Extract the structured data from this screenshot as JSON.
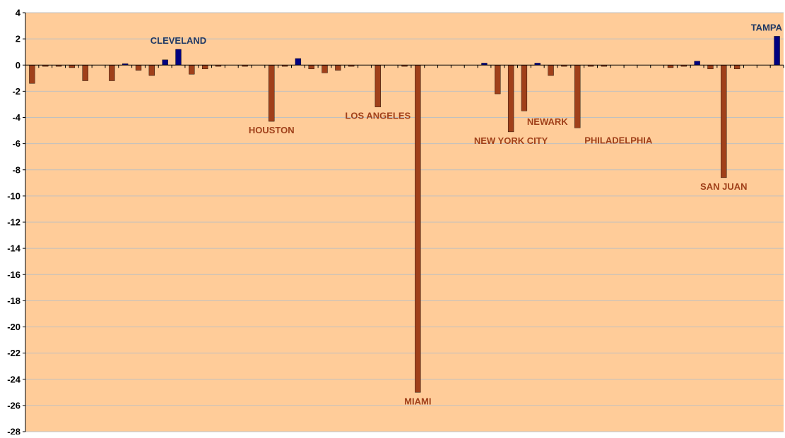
{
  "chart_data": {
    "type": "bar",
    "title": "",
    "xlabel": "",
    "ylabel": "",
    "ylim": [
      -28,
      4
    ],
    "yticks": [
      4,
      2,
      0,
      -2,
      -4,
      -6,
      -8,
      -10,
      -12,
      -14,
      -16,
      -18,
      -20,
      -22,
      -24,
      -26,
      -28
    ],
    "grid": true,
    "legend": "none",
    "values": [
      -1.4,
      -0.1,
      -0.1,
      -0.2,
      -1.2,
      0,
      -1.2,
      0.1,
      -0.4,
      -0.8,
      0.4,
      1.2,
      -0.7,
      -0.3,
      -0.1,
      0,
      -0.1,
      0,
      -4.3,
      -0.1,
      0.5,
      -0.3,
      -0.6,
      -0.4,
      -0.1,
      0,
      -3.2,
      0,
      -0.1,
      -25,
      0,
      0,
      0,
      0,
      0.15,
      -2.2,
      -5.1,
      -3.5,
      0.15,
      -0.8,
      -0.1,
      -4.8,
      -0.1,
      -0.1,
      0,
      0,
      0,
      0,
      -0.2,
      -0.1,
      0.3,
      -0.3,
      -8.6,
      -0.3,
      0,
      0,
      2.2
    ],
    "annotations": [
      {
        "label": "CLEVELAND",
        "index": 11
      },
      {
        "label": "HOUSTON",
        "index": 18
      },
      {
        "label": "LOS ANGELES",
        "index": 26
      },
      {
        "label": "MIAMI",
        "index": 29
      },
      {
        "label": "NEW YORK CITY",
        "index": 36
      },
      {
        "label": "NEWARK",
        "index": 37
      },
      {
        "label": "PHILADELPHIA",
        "index": 41
      },
      {
        "label": "SAN JUAN",
        "index": 52
      },
      {
        "label": "TAMPA",
        "index": 56
      }
    ],
    "colors": {
      "plot_background": "#FFCC99",
      "gridline": "#C0C0C0",
      "negative_bar": "#A0401A",
      "positive_bar": "#000080",
      "negative_label": "#A0401A",
      "positive_label": "#1F3864"
    }
  }
}
